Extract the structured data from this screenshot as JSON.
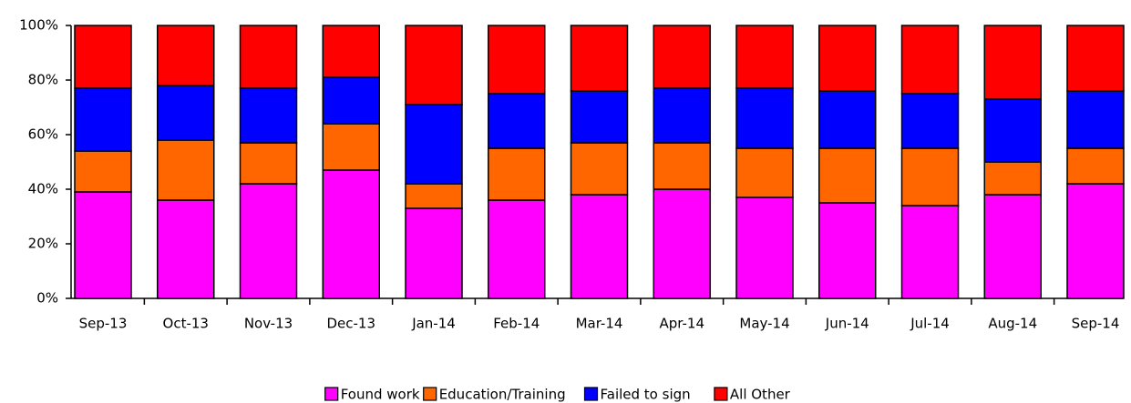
{
  "chart_data": {
    "type": "stacked_bar",
    "categories": [
      "Sep-13",
      "Oct-13",
      "Nov-13",
      "Dec-13",
      "Jan-14",
      "Feb-14",
      "Mar-14",
      "Apr-14",
      "May-14",
      "Jun-14",
      "Jul-14",
      "Aug-14",
      "Sep-14"
    ],
    "series": [
      {
        "name": "Found work",
        "color": "#ff00ff",
        "values": [
          39,
          36,
          42,
          47,
          33,
          36,
          38,
          40,
          37,
          35,
          34,
          38,
          42
        ]
      },
      {
        "name": "Education/Training",
        "color": "#ff6600",
        "values": [
          15,
          22,
          15,
          17,
          9,
          19,
          19,
          17,
          18,
          20,
          21,
          12,
          13
        ]
      },
      {
        "name": "Failed to sign",
        "color": "#0000ff",
        "values": [
          23,
          20,
          20,
          17,
          29,
          20,
          19,
          20,
          22,
          21,
          20,
          23,
          21
        ]
      },
      {
        "name": "All Other",
        "color": "#ff0000",
        "values": [
          23,
          22,
          23,
          19,
          29,
          25,
          24,
          23,
          23,
          24,
          25,
          27,
          24
        ]
      }
    ],
    "ylim": [
      0,
      100
    ],
    "yticks": [
      {
        "value": 0,
        "label": "0%"
      },
      {
        "value": 20,
        "label": "20%"
      },
      {
        "value": 40,
        "label": "40%"
      },
      {
        "value": 60,
        "label": "60%"
      },
      {
        "value": 80,
        "label": "80%"
      },
      {
        "value": 100,
        "label": "100%"
      }
    ],
    "grid": false,
    "legend": "bottom"
  }
}
